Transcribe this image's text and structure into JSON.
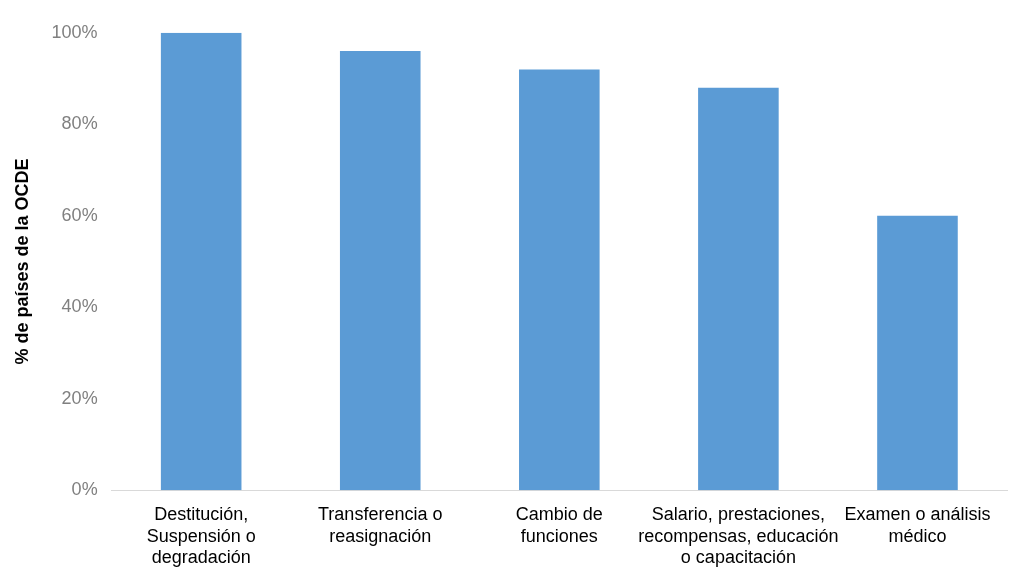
{
  "chart_data": {
    "type": "bar",
    "ylabel": "% de países de la OCDE",
    "categories": [
      "Destitución, Suspensión o degradación",
      "Transferencia o reasignación",
      "Cambio de funciones",
      "Salario, prestaciones, recompensas, educación o capacitación",
      "Examen o análisis médico"
    ],
    "values": [
      100,
      96,
      92,
      88,
      60
    ],
    "color": "#5b9bd5",
    "ylim": [
      0,
      100
    ],
    "yticks": [
      {
        "value": 0,
        "label": "0%"
      },
      {
        "value": 20,
        "label": "20%"
      },
      {
        "value": 40,
        "label": "40%"
      },
      {
        "value": 60,
        "label": "60%"
      },
      {
        "value": 80,
        "label": "80%"
      },
      {
        "value": 100,
        "label": "100%"
      }
    ],
    "grid": false,
    "legend": false
  }
}
